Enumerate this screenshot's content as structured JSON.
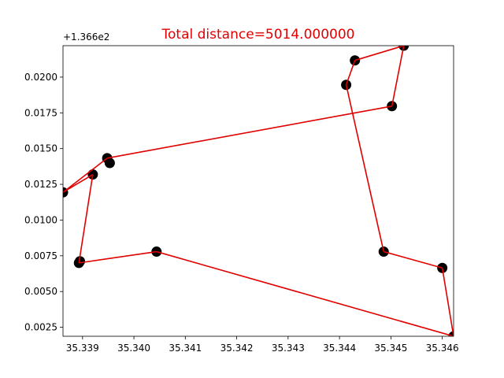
{
  "chart_data": {
    "type": "line",
    "title": "Total distance=5014.000000",
    "xlabel": "",
    "ylabel": "",
    "y_offset_label": "+1.366e2",
    "y_offset": 136.6,
    "xlim": [
      35.33862,
      35.34622
    ],
    "ylim": [
      0.00187,
      0.0222
    ],
    "xticks": [
      35.339,
      35.34,
      35.341,
      35.342,
      35.343,
      35.344,
      35.345,
      35.346
    ],
    "xtick_labels": [
      "35.339",
      "35.340",
      "35.341",
      "35.342",
      "35.343",
      "35.344",
      "35.345",
      "35.346"
    ],
    "yticks": [
      0.0025,
      0.005,
      0.0075,
      0.01,
      0.0125,
      0.015,
      0.0175,
      0.02
    ],
    "ytick_labels": [
      "0.0025",
      "0.0050",
      "0.0075",
      "0.0100",
      "0.0125",
      "0.0150",
      "0.0175",
      "0.0200"
    ],
    "grid": false,
    "colors": {
      "title": "#e00000",
      "route": "#e00000",
      "points": "#000000"
    },
    "route": [
      {
        "x": 35.34622,
        "y": 0.00187
      },
      {
        "x": 35.346,
        "y": 0.00665
      },
      {
        "x": 35.34486,
        "y": 0.00779
      },
      {
        "x": 35.34413,
        "y": 0.01946
      },
      {
        "x": 35.3443,
        "y": 0.02117
      },
      {
        "x": 35.34525,
        "y": 0.0222
      },
      {
        "x": 35.34502,
        "y": 0.01797
      },
      {
        "x": 35.33948,
        "y": 0.01433
      },
      {
        "x": 35.33862,
        "y": 0.01194
      },
      {
        "x": 35.3392,
        "y": 0.01319
      },
      {
        "x": 35.33893,
        "y": 0.007
      },
      {
        "x": 35.34044,
        "y": 0.00779
      },
      {
        "x": 35.34622,
        "y": 0.00187
      }
    ],
    "points": [
      {
        "x": 35.34622,
        "y": 0.00187
      },
      {
        "x": 35.346,
        "y": 0.00665
      },
      {
        "x": 35.34486,
        "y": 0.00779
      },
      {
        "x": 35.34413,
        "y": 0.01946
      },
      {
        "x": 35.3443,
        "y": 0.02117
      },
      {
        "x": 35.34525,
        "y": 0.0222
      },
      {
        "x": 35.34502,
        "y": 0.01797
      },
      {
        "x": 35.33948,
        "y": 0.01433
      },
      {
        "x": 35.33953,
        "y": 0.01399
      },
      {
        "x": 35.33862,
        "y": 0.01194
      },
      {
        "x": 35.3392,
        "y": 0.01319
      },
      {
        "x": 35.33893,
        "y": 0.007
      },
      {
        "x": 35.33895,
        "y": 0.00712
      },
      {
        "x": 35.34044,
        "y": 0.00779
      }
    ]
  }
}
